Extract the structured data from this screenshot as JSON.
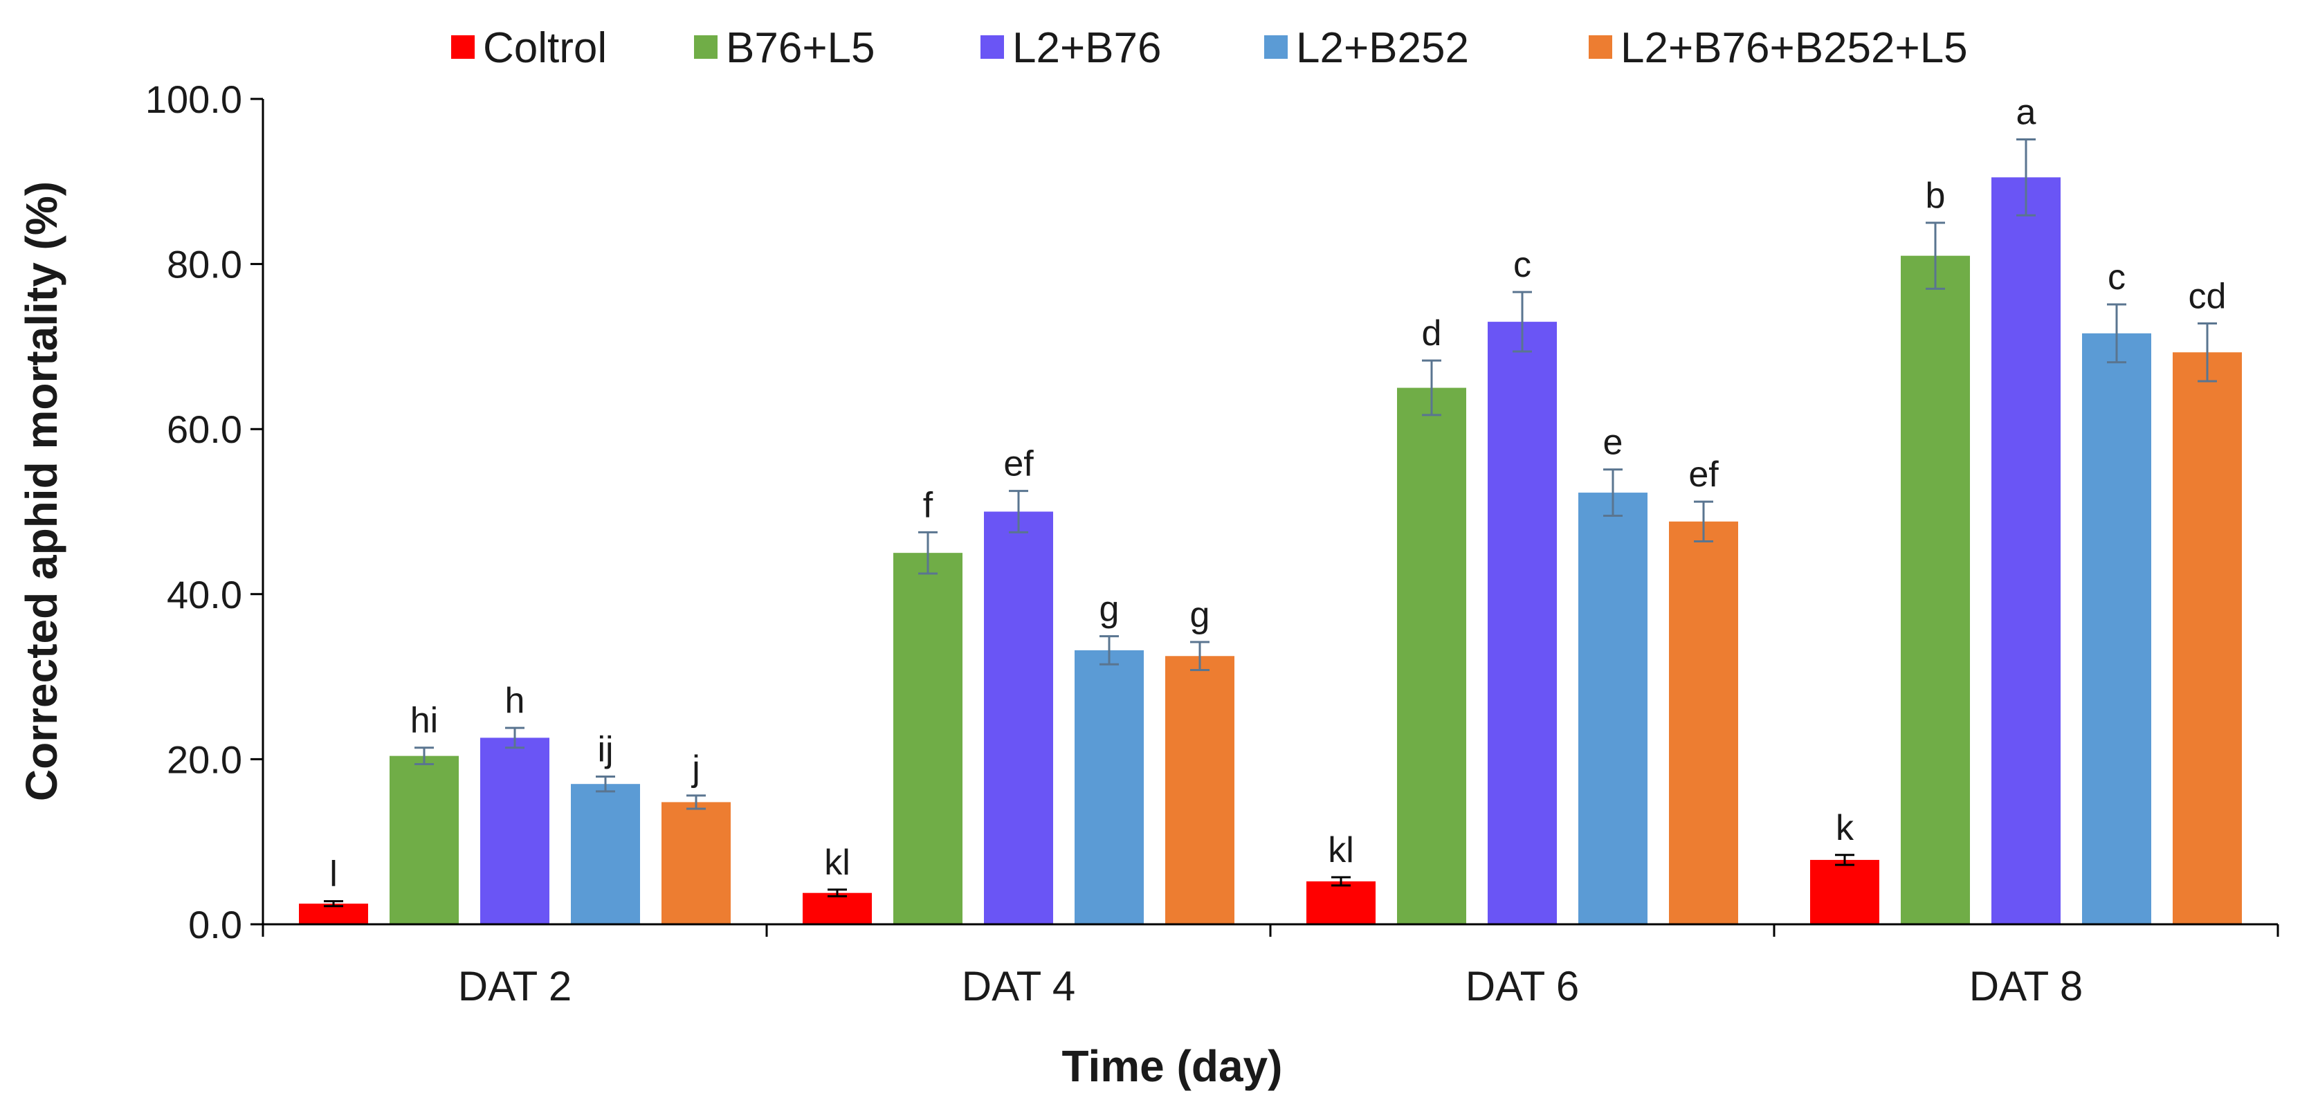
{
  "chart_data": {
    "type": "bar",
    "title": "",
    "xlabel": "Time (day)",
    "ylabel": "Corrected aphid mortality (%)",
    "ylim": [
      0,
      100
    ],
    "yticks": [
      "0.0",
      "20.0",
      "40.0",
      "60.0",
      "80.0",
      "100.0"
    ],
    "grid": false,
    "legend_position": "top",
    "categories": [
      "DAT 2",
      "DAT 4",
      "DAT 6",
      "DAT 8"
    ],
    "series": [
      {
        "name": "Coltrol",
        "color": "#ff0000",
        "values": [
          2.5,
          3.8,
          5.2,
          7.8
        ],
        "errors": [
          0.3,
          0.4,
          0.5,
          0.6
        ],
        "labels": [
          "l",
          "kl",
          "kl",
          "k"
        ]
      },
      {
        "name": "B76+L5",
        "color": "#70ad47",
        "values": [
          20.4,
          45.0,
          65.0,
          81.0
        ],
        "errors": [
          1.0,
          2.5,
          3.3,
          4.0
        ],
        "labels": [
          "hi",
          "f",
          "d",
          "b"
        ]
      },
      {
        "name": "L2+B76",
        "color": "#6a55f5",
        "values": [
          22.6,
          50.0,
          73.0,
          90.5
        ],
        "errors": [
          1.2,
          2.5,
          3.6,
          4.6
        ],
        "labels": [
          "h",
          "ef",
          "c",
          "a"
        ]
      },
      {
        "name": "L2+B252",
        "color": "#5b9bd5",
        "values": [
          17.0,
          33.2,
          52.3,
          71.6
        ],
        "errors": [
          0.9,
          1.7,
          2.8,
          3.5
        ],
        "labels": [
          "ij",
          "g",
          "e",
          "c"
        ]
      },
      {
        "name": "L2+B76+B252+L5",
        "color": "#ed7d31",
        "values": [
          14.8,
          32.5,
          48.8,
          69.3
        ],
        "errors": [
          0.8,
          1.7,
          2.4,
          3.5
        ],
        "labels": [
          "j",
          "g",
          "ef",
          "cd"
        ]
      }
    ]
  }
}
